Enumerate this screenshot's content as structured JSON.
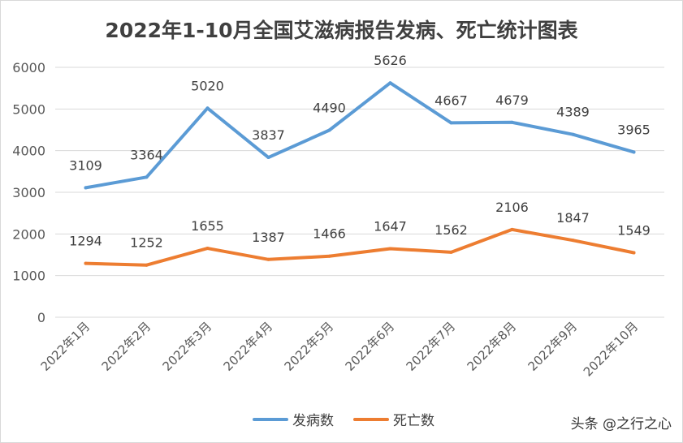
{
  "chart_data": {
    "type": "line",
    "title": "2022年1-10月全国艾滋病报告发病、死亡统计图表",
    "categories": [
      "2022年1月",
      "2022年2月",
      "2022年3月",
      "2022年4月",
      "2022年5月",
      "2022年6月",
      "2022年7月",
      "2022年8月",
      "2022年9月",
      "2022年10月"
    ],
    "series": [
      {
        "name": "发病数",
        "color": "#5B9BD5",
        "values": [
          3109,
          3364,
          5020,
          3837,
          4490,
          5626,
          4667,
          4679,
          4389,
          3965
        ]
      },
      {
        "name": "死亡数",
        "color": "#ED7D31",
        "values": [
          1294,
          1252,
          1655,
          1387,
          1466,
          1647,
          1562,
          2106,
          1847,
          1549
        ]
      }
    ],
    "ylim": [
      0,
      6000
    ],
    "yticks": [
      0,
      1000,
      2000,
      3000,
      4000,
      5000,
      6000
    ],
    "grid": true,
    "legend": "bottom",
    "xlabel": "",
    "ylabel": ""
  },
  "watermark": "头条 @之行之心"
}
